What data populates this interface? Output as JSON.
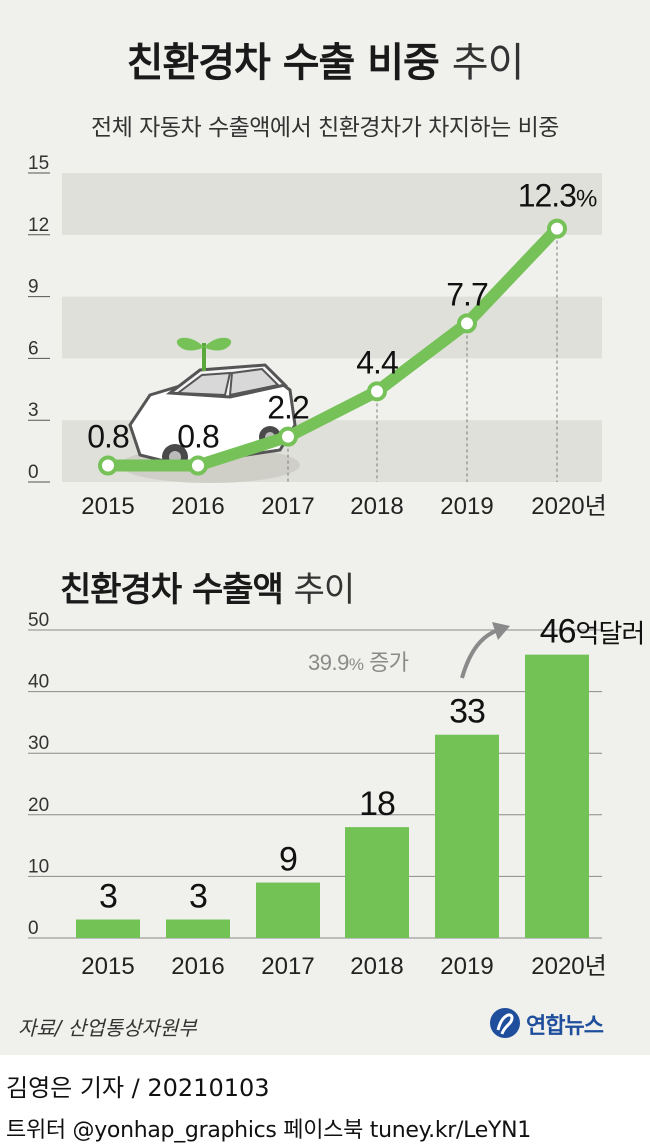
{
  "header": {
    "title_bold": "친환경차 수출 비중",
    "title_light": "추이",
    "subtitle": "전체 자동차 수출액에서 친환경차가 차지하는 비중"
  },
  "section2": {
    "title_bold": "친환경차 수출액",
    "title_light": "추이"
  },
  "colors": {
    "green": "#76c258",
    "bar_green": "#72c256",
    "band": "#e0e0da",
    "panel": "#f0f0ec",
    "annotation_gray": "#8a8a8a",
    "logo_blue": "#1f4e9c"
  },
  "chart_data": [
    {
      "type": "line",
      "title": "친환경차 수출 비중 추이",
      "subtitle": "전체 자동차 수출액에서 친환경차가 차지하는 비중",
      "x": [
        "2015",
        "2016",
        "2017",
        "2018",
        "2019",
        "2020"
      ],
      "x_tick_labels": [
        "2015",
        "2016",
        "2017",
        "2018",
        "2019",
        "2020년"
      ],
      "values": [
        0.8,
        0.8,
        2.2,
        4.4,
        7.7,
        12.3
      ],
      "value_labels": [
        "0.8",
        "0.8",
        "2.2",
        "4.4",
        "7.7",
        "12.3"
      ],
      "last_unit": "%",
      "ylim": [
        0,
        15
      ],
      "yticks": [
        "15",
        "12",
        "9",
        "6",
        "3",
        "0"
      ],
      "ytick_values": [
        15,
        12,
        9,
        6,
        3,
        0
      ],
      "banded_background": true,
      "illustration": "car-with-sprout-icon"
    },
    {
      "type": "bar",
      "title": "친환경차 수출액 추이",
      "categories": [
        "2015",
        "2016",
        "2017",
        "2018",
        "2019",
        "2020"
      ],
      "x_tick_labels": [
        "2015",
        "2016",
        "2017",
        "2018",
        "2019",
        "2020년"
      ],
      "values": [
        3,
        3,
        9,
        18,
        33,
        46
      ],
      "value_labels": [
        "3",
        "3",
        "9",
        "18",
        "33",
        "46"
      ],
      "last_unit": "억달러",
      "ylim": [
        0,
        50
      ],
      "yticks": [
        "50",
        "40",
        "30",
        "20",
        "10",
        "0"
      ],
      "ytick_values": [
        50,
        40,
        30,
        20,
        10,
        0
      ],
      "annotation": {
        "value_text": "39.9",
        "unit": "%",
        "label": " 증가"
      }
    }
  ],
  "footer": {
    "source": "자료/ 산업통상자원부",
    "logo_text": "연합뉴스",
    "reporter_name": "김영은 기자",
    "reporter_date": " / 20210103",
    "twitter": "트위터 @yonhap_graphics  페이스북 tuney.kr/LeYN1"
  }
}
